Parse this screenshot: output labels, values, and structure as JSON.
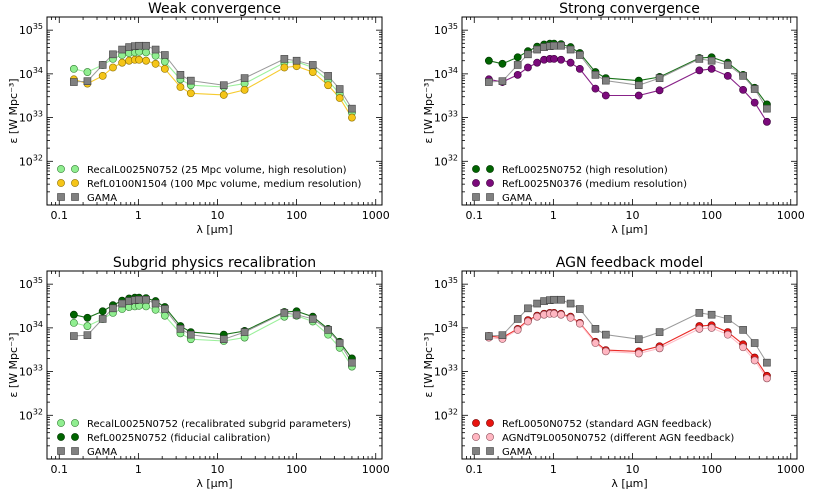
{
  "chart_data": [
    {
      "type": "line",
      "title": "Weak convergence",
      "xlabel": "λ [μm]",
      "ylabel": "ε [W Mpc⁻³]",
      "xscale": "log",
      "yscale": "log",
      "xlim": [
        0.07,
        1200
      ],
      "ylim": [
        1e+31,
        2e+35
      ],
      "x_ticks": [
        {
          "v": 0.1,
          "label": "0.1"
        },
        {
          "v": 1,
          "label": "1"
        },
        {
          "v": 10,
          "label": "10"
        },
        {
          "v": 100,
          "label": "100"
        },
        {
          "v": 1000,
          "label": "1000"
        }
      ],
      "y_ticks": [
        {
          "v": 1e+32,
          "base": "10",
          "exp": "32"
        },
        {
          "v": 1e+33,
          "base": "10",
          "exp": "33"
        },
        {
          "v": 1e+34,
          "base": "10",
          "exp": "34"
        },
        {
          "v": 1e+35,
          "base": "10",
          "exp": "35"
        }
      ],
      "legend_position": "lower-left",
      "x": [
        0.153,
        0.227,
        0.354,
        0.477,
        0.623,
        0.763,
        0.902,
        1.02,
        1.25,
        1.65,
        2.16,
        3.4,
        4.6,
        12,
        22,
        70,
        100,
        160,
        250,
        350,
        500
      ],
      "series": [
        {
          "name": "RecalL0025N0752 (25 Mpc volume, high resolution)",
          "color": "#90ee90",
          "edge": "#2e7d2e",
          "marker": "circle",
          "values": [
            1.3e+34,
            1.1e+34,
            1.6e+34,
            2.2e+34,
            2.7e+34,
            3e+34,
            3.1e+34,
            3.2e+34,
            3.1e+34,
            2.6e+34,
            1.9e+34,
            7.5e+33,
            5.5e+33,
            5e+33,
            6e+33,
            1.8e+34,
            1.9e+34,
            1.4e+34,
            7e+33,
            3.5e+33,
            1.3e+33
          ]
        },
        {
          "name": "RefL0100N1504 (100 Mpc volume, medium resolution)",
          "color": "#f5c518",
          "edge": "#8a6d00",
          "marker": "circle",
          "values": [
            7.5e+33,
            6e+33,
            9e+33,
            1.4e+34,
            1.8e+34,
            2e+34,
            2.1e+34,
            2.1e+34,
            2e+34,
            1.7e+34,
            1.3e+34,
            5e+33,
            3.6e+33,
            3.3e+33,
            4.3e+33,
            1.4e+34,
            1.5e+34,
            1.1e+34,
            5.5e+33,
            2.8e+33,
            1e+33
          ]
        },
        {
          "name": "GAMA",
          "color": "#808080",
          "edge": "#404040",
          "marker": "square",
          "values": [
            6.5e+33,
            6.8e+33,
            1.6e+34,
            2.8e+34,
            3.6e+34,
            4.1e+34,
            4.3e+34,
            4.4e+34,
            4.4e+34,
            3.6e+34,
            2.7e+34,
            9.5e+33,
            7e+33,
            5.5e+33,
            8e+33,
            2.2e+34,
            2e+34,
            1.6e+34,
            9e+33,
            4.5e+33,
            1.6e+33
          ]
        }
      ]
    },
    {
      "type": "line",
      "title": "Strong convergence",
      "xlabel": "λ [μm]",
      "ylabel": "ε [W Mpc⁻³]",
      "xscale": "log",
      "yscale": "log",
      "xlim": [
        0.07,
        1200
      ],
      "ylim": [
        1e+31,
        2e+35
      ],
      "x_ticks": [
        {
          "v": 0.1,
          "label": "0.1"
        },
        {
          "v": 1,
          "label": "1"
        },
        {
          "v": 10,
          "label": "10"
        },
        {
          "v": 100,
          "label": "100"
        },
        {
          "v": 1000,
          "label": "1000"
        }
      ],
      "y_ticks": [
        {
          "v": 1e+32,
          "base": "10",
          "exp": "32"
        },
        {
          "v": 1e+33,
          "base": "10",
          "exp": "33"
        },
        {
          "v": 1e+34,
          "base": "10",
          "exp": "34"
        },
        {
          "v": 1e+35,
          "base": "10",
          "exp": "35"
        }
      ],
      "legend_position": "lower-left",
      "x": [
        0.153,
        0.227,
        0.354,
        0.477,
        0.623,
        0.763,
        0.902,
        1.02,
        1.25,
        1.65,
        2.16,
        3.4,
        4.6,
        12,
        22,
        70,
        100,
        160,
        250,
        350,
        500
      ],
      "series": [
        {
          "name": "RefL0025N0752 (high resolution)",
          "color": "#006400",
          "edge": "#003300",
          "marker": "circle",
          "values": [
            2e+34,
            1.7e+34,
            2.4e+34,
            3.3e+34,
            4.2e+34,
            4.7e+34,
            4.9e+34,
            4.9e+34,
            4.8e+34,
            4.1e+34,
            3e+34,
            1.1e+34,
            8e+33,
            7e+33,
            8.5e+33,
            2.3e+34,
            2.4e+34,
            1.8e+34,
            9.5e+33,
            4.8e+33,
            2e+33
          ]
        },
        {
          "name": "RefL0025N0376 (medium resolution)",
          "color": "#7b0a7b",
          "edge": "#3d003d",
          "marker": "circle",
          "values": [
            7.5e+33,
            6.5e+33,
            9.5e+33,
            1.4e+34,
            1.8e+34,
            2.1e+34,
            2.2e+34,
            2.2e+34,
            2.1e+34,
            1.8e+34,
            1.3e+34,
            4.6e+33,
            3.2e+33,
            3.2e+33,
            4.2e+33,
            1.2e+34,
            1.3e+34,
            9e+33,
            4.3e+33,
            2.2e+33,
            8e+32
          ]
        },
        {
          "name": "GAMA",
          "color": "#808080",
          "edge": "#404040",
          "marker": "square",
          "values": [
            6.5e+33,
            6.8e+33,
            1.6e+34,
            2.8e+34,
            3.6e+34,
            4.1e+34,
            4.3e+34,
            4.4e+34,
            4.4e+34,
            3.6e+34,
            2.7e+34,
            9.5e+33,
            7e+33,
            5.5e+33,
            8e+33,
            2.2e+34,
            2e+34,
            1.6e+34,
            9e+33,
            4.5e+33,
            1.6e+33
          ]
        }
      ]
    },
    {
      "type": "line",
      "title": "Subgrid physics recalibration",
      "xlabel": "λ [μm]",
      "ylabel": "ε [W Mpc⁻³]",
      "xscale": "log",
      "yscale": "log",
      "xlim": [
        0.07,
        1200
      ],
      "ylim": [
        1e+31,
        2e+35
      ],
      "x_ticks": [
        {
          "v": 0.1,
          "label": "0.1"
        },
        {
          "v": 1,
          "label": "1"
        },
        {
          "v": 10,
          "label": "10"
        },
        {
          "v": 100,
          "label": "100"
        },
        {
          "v": 1000,
          "label": "1000"
        }
      ],
      "y_ticks": [
        {
          "v": 1e+32,
          "base": "10",
          "exp": "32"
        },
        {
          "v": 1e+33,
          "base": "10",
          "exp": "33"
        },
        {
          "v": 1e+34,
          "base": "10",
          "exp": "34"
        },
        {
          "v": 1e+35,
          "base": "10",
          "exp": "35"
        }
      ],
      "legend_position": "lower-left",
      "x": [
        0.153,
        0.227,
        0.354,
        0.477,
        0.623,
        0.763,
        0.902,
        1.02,
        1.25,
        1.65,
        2.16,
        3.4,
        4.6,
        12,
        22,
        70,
        100,
        160,
        250,
        350,
        500
      ],
      "series": [
        {
          "name": "RecalL0025N0752 (recalibrated subgrid parameters)",
          "color": "#90ee90",
          "edge": "#2e7d2e",
          "marker": "circle",
          "values": [
            1.3e+34,
            1.1e+34,
            1.6e+34,
            2.2e+34,
            2.7e+34,
            3e+34,
            3.1e+34,
            3.2e+34,
            3.1e+34,
            2.6e+34,
            1.9e+34,
            7.5e+33,
            5.5e+33,
            5e+33,
            6e+33,
            1.8e+34,
            1.9e+34,
            1.4e+34,
            7e+33,
            3.5e+33,
            1.3e+33
          ]
        },
        {
          "name": "RefL0025N0752 (fiducial calibration)",
          "color": "#006400",
          "edge": "#003300",
          "marker": "circle",
          "values": [
            2e+34,
            1.7e+34,
            2.4e+34,
            3.3e+34,
            4.2e+34,
            4.7e+34,
            4.9e+34,
            4.9e+34,
            4.8e+34,
            4.1e+34,
            3e+34,
            1.1e+34,
            8e+33,
            7e+33,
            8.5e+33,
            2.3e+34,
            2.4e+34,
            1.8e+34,
            9.5e+33,
            4.8e+33,
            2e+33
          ]
        },
        {
          "name": "GAMA",
          "color": "#808080",
          "edge": "#404040",
          "marker": "square",
          "values": [
            6.5e+33,
            6.8e+33,
            1.6e+34,
            2.8e+34,
            3.6e+34,
            4.1e+34,
            4.3e+34,
            4.4e+34,
            4.4e+34,
            3.6e+34,
            2.7e+34,
            9.5e+33,
            7e+33,
            5.5e+33,
            8e+33,
            2.2e+34,
            2e+34,
            1.6e+34,
            9e+33,
            4.5e+33,
            1.6e+33
          ]
        }
      ]
    },
    {
      "type": "line",
      "title": "AGN feedback model",
      "xlabel": "λ [μm]",
      "ylabel": "ε [W Mpc⁻³]",
      "xscale": "log",
      "yscale": "log",
      "xlim": [
        0.07,
        1200
      ],
      "ylim": [
        1e+31,
        2e+35
      ],
      "x_ticks": [
        {
          "v": 0.1,
          "label": "0.1"
        },
        {
          "v": 1,
          "label": "1"
        },
        {
          "v": 10,
          "label": "10"
        },
        {
          "v": 100,
          "label": "100"
        },
        {
          "v": 1000,
          "label": "1000"
        }
      ],
      "y_ticks": [
        {
          "v": 1e+32,
          "base": "10",
          "exp": "32"
        },
        {
          "v": 1e+33,
          "base": "10",
          "exp": "33"
        },
        {
          "v": 1e+34,
          "base": "10",
          "exp": "34"
        },
        {
          "v": 1e+35,
          "base": "10",
          "exp": "35"
        }
      ],
      "legend_position": "lower-left",
      "x": [
        0.153,
        0.227,
        0.354,
        0.477,
        0.623,
        0.763,
        0.902,
        1.02,
        1.25,
        1.65,
        2.16,
        3.4,
        4.6,
        12,
        22,
        70,
        100,
        160,
        250,
        350,
        500
      ],
      "series": [
        {
          "name": "RefL0050N0752 (standard AGN feedback)",
          "color": "#e8140f",
          "edge": "#7a0000",
          "marker": "circle",
          "values": [
            6.5e+33,
            6e+33,
            9.5e+33,
            1.5e+34,
            1.9e+34,
            2.1e+34,
            2.2e+34,
            2.2e+34,
            2.1e+34,
            1.8e+34,
            1.3e+34,
            4.8e+33,
            3.1e+33,
            2.9e+33,
            3.8e+33,
            1.1e+34,
            1.15e+34,
            8e+33,
            4.2e+33,
            2.1e+33,
            8e+32
          ]
        },
        {
          "name": "AGNdT9L0050N0752 (different AGN feedback)",
          "color": "#ffb6c1",
          "edge": "#8a4a55",
          "marker": "circle",
          "values": [
            6e+33,
            5.6e+33,
            9e+33,
            1.4e+34,
            1.8e+34,
            2e+34,
            2.1e+34,
            2.1e+34,
            2e+34,
            1.7e+34,
            1.25e+34,
            4.5e+33,
            2.9e+33,
            2.6e+33,
            3.4e+33,
            9.5e+33,
            1e+34,
            7e+33,
            3.6e+33,
            1.8e+33,
            7e+32
          ]
        },
        {
          "name": "GAMA",
          "color": "#808080",
          "edge": "#404040",
          "marker": "square",
          "values": [
            6.5e+33,
            6.8e+33,
            1.6e+34,
            2.8e+34,
            3.6e+34,
            4.1e+34,
            4.3e+34,
            4.4e+34,
            4.4e+34,
            3.6e+34,
            2.7e+34,
            9.5e+33,
            7e+33,
            5.5e+33,
            8e+33,
            2.2e+34,
            2e+34,
            1.6e+34,
            9e+33,
            4.5e+33,
            1.6e+33
          ]
        }
      ]
    }
  ]
}
